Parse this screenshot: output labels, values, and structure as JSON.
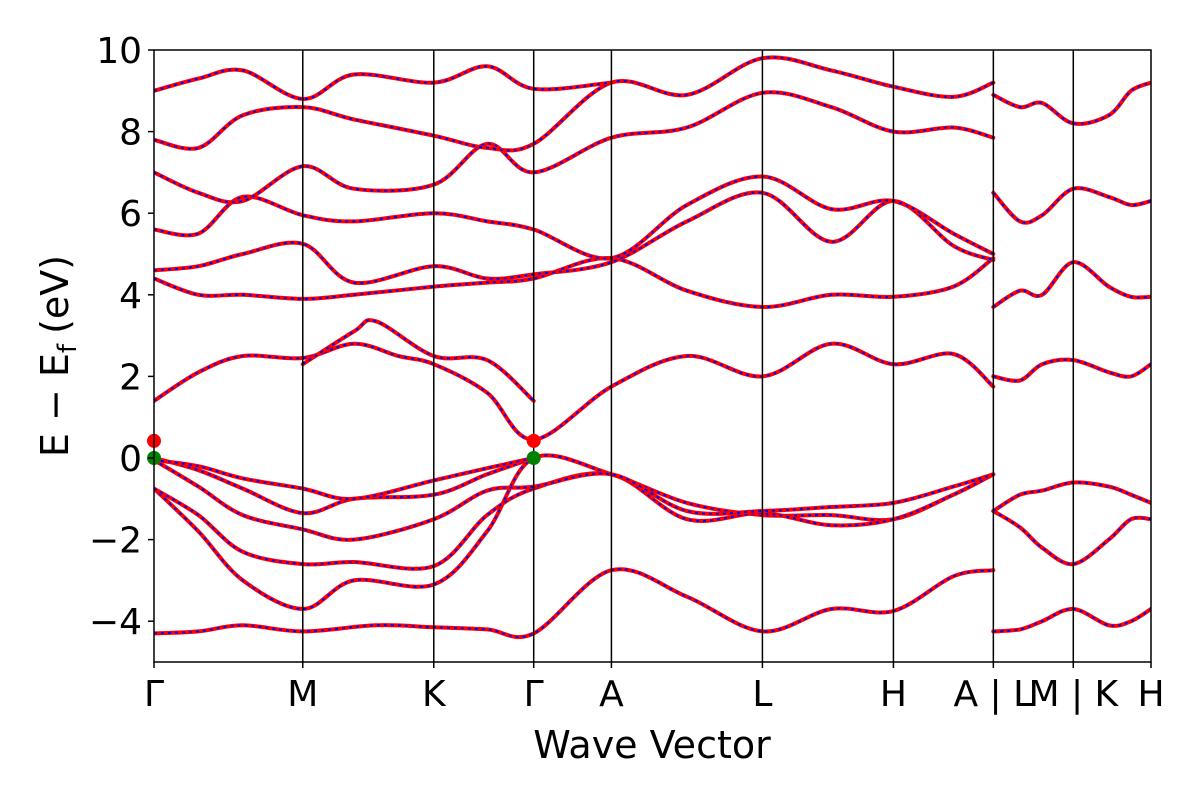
{
  "chart_data": {
    "type": "line",
    "title": "",
    "xlabel": "Wave Vector",
    "ylabel": "E − E",
    "ylabel_subscript": "f",
    "ylabel_unit": "(eV)",
    "ylim": [
      -5,
      10
    ],
    "yticks": [
      -4,
      -2,
      0,
      2,
      4,
      6,
      8,
      10
    ],
    "ytick_labels": [
      "−4",
      "−2",
      "0",
      "2",
      "4",
      "6",
      "8",
      "10"
    ],
    "x_range": [
      0,
      4.49
    ],
    "kpoints": [
      {
        "x": 0.0,
        "label": "Γ"
      },
      {
        "x": 0.67,
        "label": "M"
      },
      {
        "x": 1.26,
        "label": "K"
      },
      {
        "x": 1.71,
        "label": "Γ"
      },
      {
        "x": 2.06,
        "label": "A"
      },
      {
        "x": 2.74,
        "label": "L"
      },
      {
        "x": 3.33,
        "label": "H"
      },
      {
        "x": 3.78,
        "label": "A | L"
      },
      {
        "x": 4.14,
        "label": "M | K"
      },
      {
        "x": 4.49,
        "label": "H"
      }
    ],
    "vertical_lines_x": [
      0.67,
      1.26,
      1.71,
      2.06,
      2.74,
      3.33,
      3.78,
      4.14
    ],
    "grid": false,
    "line_colors": {
      "primary": "#ff0000",
      "overlay": "#0000ff"
    },
    "series": [
      {
        "x": [
          0.0,
          0.2,
          0.4,
          0.67,
          1.0,
          1.26,
          1.5,
          1.71,
          2.06,
          2.4,
          2.74,
          3.05,
          3.33,
          3.6,
          3.78
        ],
        "values": [
          -4.3,
          -4.25,
          -4.1,
          -4.25,
          -4.1,
          -4.15,
          -4.2,
          -4.3,
          -2.75,
          -3.4,
          -4.25,
          -3.7,
          -3.75,
          -2.9,
          -2.75
        ]
      },
      {
        "x": [
          0.0,
          0.2,
          0.4,
          0.67,
          0.9,
          1.26,
          1.5,
          1.71,
          2.06,
          2.4,
          2.74,
          3.05,
          3.33,
          3.6,
          3.78
        ],
        "values": [
          -0.75,
          -1.8,
          -3.0,
          -3.7,
          -3.0,
          -3.1,
          -1.8,
          0.0,
          -0.4,
          -1.1,
          -1.4,
          -1.4,
          -1.5,
          -0.9,
          -0.4
        ]
      },
      {
        "x": [
          0.0,
          0.2,
          0.4,
          0.67,
          0.9,
          1.26,
          1.5,
          1.71,
          2.06,
          2.4,
          2.74,
          3.05,
          3.33,
          3.6,
          3.78
        ],
        "values": [
          -0.75,
          -1.4,
          -2.3,
          -2.6,
          -2.55,
          -2.65,
          -1.4,
          -0.75,
          -0.4,
          -1.5,
          -1.35,
          -1.65,
          -1.5,
          -0.9,
          -0.4
        ]
      },
      {
        "x": [
          0.0,
          0.2,
          0.4,
          0.67,
          0.9,
          1.26,
          1.5,
          1.71,
          2.06,
          2.4,
          2.74,
          3.05,
          3.33,
          3.6,
          3.78
        ],
        "values": [
          -0.05,
          -0.7,
          -1.4,
          -1.75,
          -2.0,
          -1.5,
          -0.8,
          -0.7,
          -0.4,
          -1.3,
          -1.3,
          -1.2,
          -1.1,
          -0.7,
          -0.4
        ]
      },
      {
        "x": [
          0.0,
          0.2,
          0.4,
          0.67,
          0.9,
          1.26,
          1.5,
          1.71
        ],
        "values": [
          0.0,
          -0.3,
          -0.75,
          -1.35,
          -1.0,
          -0.9,
          -0.4,
          0.0
        ]
      },
      {
        "x": [
          0.0,
          0.2,
          0.4,
          0.67,
          0.9,
          1.26,
          1.5,
          1.71
        ],
        "values": [
          -0.05,
          -0.2,
          -0.5,
          -0.75,
          -1.0,
          -0.55,
          -0.25,
          0.0
        ]
      },
      {
        "x": [
          0.0,
          0.2,
          0.4,
          0.67,
          0.9,
          1.1,
          1.26,
          1.5,
          1.71,
          2.06,
          2.4,
          2.74,
          3.05,
          3.33,
          3.6,
          3.78
        ],
        "values": [
          1.4,
          2.1,
          2.5,
          2.45,
          2.8,
          2.5,
          2.3,
          1.6,
          0.45,
          1.75,
          2.5,
          2.0,
          2.8,
          2.3,
          2.55,
          1.75
        ]
      },
      {
        "x": [
          0.67,
          0.9,
          1.0,
          1.26,
          1.5,
          1.71
        ],
        "values": [
          2.3,
          3.1,
          3.35,
          2.5,
          2.4,
          1.4
        ]
      },
      {
        "x": [
          0.0,
          0.2,
          0.4,
          0.67,
          0.9,
          1.26,
          1.5,
          1.71,
          2.06,
          2.4,
          2.74,
          3.05,
          3.33,
          3.6,
          3.78
        ],
        "values": [
          4.4,
          4.0,
          4.0,
          3.9,
          4.0,
          4.2,
          4.3,
          4.4,
          4.9,
          4.1,
          3.7,
          4.0,
          3.95,
          4.2,
          4.9
        ]
      },
      {
        "x": [
          0.0,
          0.2,
          0.4,
          0.67,
          0.9,
          1.26,
          1.5,
          1.71,
          2.06,
          2.4,
          2.74,
          3.05,
          3.33,
          3.6,
          3.78
        ],
        "values": [
          4.6,
          4.7,
          5.0,
          5.25,
          4.3,
          4.7,
          4.4,
          4.5,
          4.8,
          5.8,
          6.5,
          5.3,
          6.3,
          5.2,
          4.85
        ]
      },
      {
        "x": [
          0.0,
          0.2,
          0.4,
          0.67,
          0.9,
          1.26,
          1.5,
          1.71,
          2.06,
          2.4,
          2.74,
          3.05,
          3.33,
          3.6,
          3.78
        ],
        "values": [
          5.6,
          5.5,
          6.4,
          5.95,
          5.8,
          6.0,
          5.8,
          5.6,
          4.9,
          6.2,
          6.9,
          6.1,
          6.3,
          5.5,
          5.0
        ]
      },
      {
        "x": [
          0.0,
          0.2,
          0.4,
          0.67,
          0.9,
          1.26,
          1.5,
          1.71,
          2.06,
          2.4,
          2.74,
          3.05,
          3.33,
          3.6,
          3.78
        ],
        "values": [
          7.0,
          6.5,
          6.3,
          7.15,
          6.6,
          6.7,
          7.7,
          7.0,
          7.85,
          8.1,
          8.95,
          8.6,
          8.0,
          8.1,
          7.85
        ]
      },
      {
        "x": [
          0.0,
          0.2,
          0.4,
          0.67,
          0.9,
          1.26,
          1.5,
          1.71,
          2.06,
          2.4,
          2.74,
          3.05,
          3.33,
          3.6,
          3.78
        ],
        "values": [
          7.8,
          7.6,
          8.4,
          8.6,
          8.3,
          7.9,
          7.6,
          7.7,
          9.2,
          8.9,
          9.8,
          9.5,
          9.1,
          8.85,
          9.2
        ]
      },
      {
        "x": [
          0.0,
          0.2,
          0.4,
          0.67,
          0.9,
          1.26,
          1.5,
          1.71,
          2.06
        ],
        "values": [
          9.0,
          9.3,
          9.5,
          8.8,
          9.4,
          9.2,
          9.6,
          9.05,
          9.2
        ]
      },
      {
        "x": [
          3.78,
          3.9,
          4.0,
          4.14,
          4.3,
          4.4,
          4.49
        ],
        "values": [
          -4.25,
          -4.2,
          -4.0,
          -3.7,
          -4.1,
          -4.0,
          -3.7
        ]
      },
      {
        "x": [
          3.78,
          3.9,
          4.0,
          4.14,
          4.3,
          4.4,
          4.49
        ],
        "values": [
          -1.3,
          -1.7,
          -2.2,
          -2.6,
          -2.0,
          -1.5,
          -1.5
        ]
      },
      {
        "x": [
          3.78,
          3.9,
          4.0,
          4.14,
          4.3,
          4.4,
          4.49
        ],
        "values": [
          -1.3,
          -0.9,
          -0.8,
          -0.6,
          -0.7,
          -0.9,
          -1.1
        ]
      },
      {
        "x": [
          3.78,
          3.9,
          4.0,
          4.14,
          4.3,
          4.4,
          4.49
        ],
        "values": [
          2.0,
          1.9,
          2.3,
          2.4,
          2.1,
          2.0,
          2.3
        ]
      },
      {
        "x": [
          3.78,
          3.9,
          4.0,
          4.14,
          4.3,
          4.4,
          4.49
        ],
        "values": [
          3.7,
          4.1,
          4.0,
          4.8,
          4.2,
          3.95,
          3.95
        ]
      },
      {
        "x": [
          3.78,
          3.9,
          4.0,
          4.14,
          4.3,
          4.4,
          4.49
        ],
        "values": [
          6.5,
          5.8,
          5.95,
          6.6,
          6.4,
          6.2,
          6.3
        ]
      },
      {
        "x": [
          3.78,
          3.9,
          4.0,
          4.14,
          4.3,
          4.4,
          4.49
        ],
        "values": [
          8.9,
          8.6,
          8.7,
          8.2,
          8.4,
          9.0,
          9.2
        ]
      }
    ],
    "markers": [
      {
        "x": 0.0,
        "y": 0.42,
        "color": "#ff0000"
      },
      {
        "x": 0.0,
        "y": 0.0,
        "color": "#008000"
      },
      {
        "x": 1.71,
        "y": 0.42,
        "color": "#ff0000"
      },
      {
        "x": 1.71,
        "y": 0.0,
        "color": "#008000"
      }
    ]
  }
}
